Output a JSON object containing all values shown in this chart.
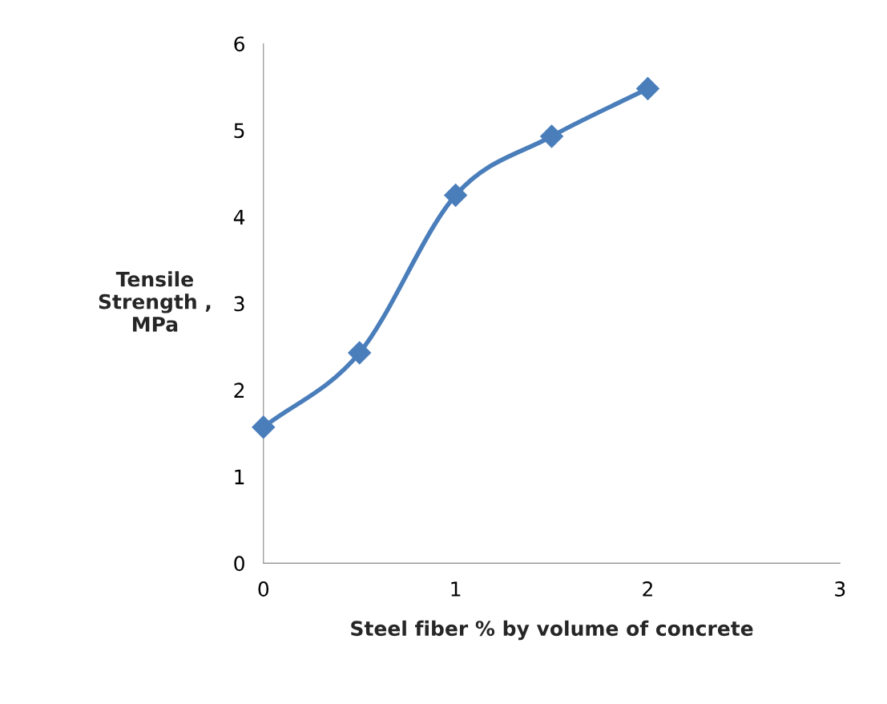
{
  "chart_data": {
    "type": "line",
    "xlabel": "Steel fiber % by volume of concrete",
    "ylabel": "Tensile\nStrength ,\nMPa",
    "x": [
      0,
      0.5,
      1,
      1.5,
      2
    ],
    "series": [
      {
        "color": "#4a7ebb",
        "values": [
          1.57,
          2.43,
          4.25,
          4.93,
          5.48
        ]
      }
    ],
    "xlim": [
      0,
      3
    ],
    "xticks": [
      0,
      1,
      2,
      3
    ],
    "ylim": [
      0,
      6
    ],
    "yticks": [
      0,
      1,
      2,
      3,
      4,
      5,
      6
    ],
    "marker": "diamond",
    "line_style": "solid",
    "grid": false,
    "legend": false
  }
}
